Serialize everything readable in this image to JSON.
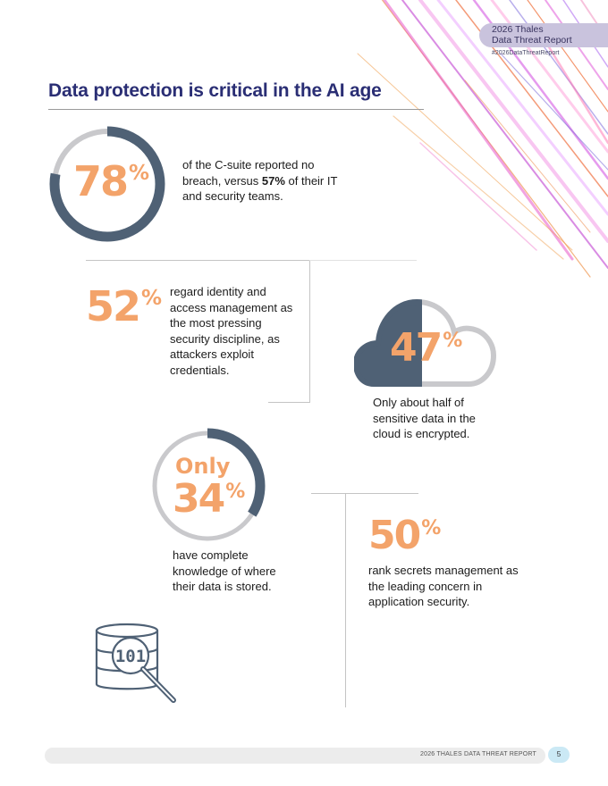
{
  "header": {
    "report_line1": "2026 Thales",
    "report_line2": "Data Threat Report",
    "hashtag": "#2026DataThreatReport"
  },
  "title": "Data protection is critical in the AI age",
  "stats": [
    {
      "value": "78",
      "unit": "%",
      "progress_fraction": 0.78,
      "text_part1": "of the C-suite reported no breach, versus ",
      "text_bold": "57%",
      "text_part2": " of their IT and security teams."
    },
    {
      "value": "52",
      "unit": "%",
      "text": "regard identity and access management as the most pressing security discipline, as attackers exploit credentials."
    },
    {
      "value": "47",
      "unit": "%",
      "text": "Only about half of sensitive data in the cloud is encrypted."
    },
    {
      "prefix": "Only",
      "value": "34",
      "unit": "%",
      "progress_fraction": 0.34,
      "text": "have complete knowledge of where their data is stored."
    },
    {
      "value": "50",
      "unit": "%",
      "text": "rank secrets management as the leading concern in application security."
    }
  ],
  "database_icon_label": "101",
  "footer": {
    "text": "2026 THALES DATA THREAT REPORT",
    "page": "5"
  },
  "colors": {
    "accent_orange": "#f3a36a",
    "title_navy": "#2a2e74",
    "ring_slate": "#4f6175",
    "ring_track": "#c9c9cc"
  }
}
